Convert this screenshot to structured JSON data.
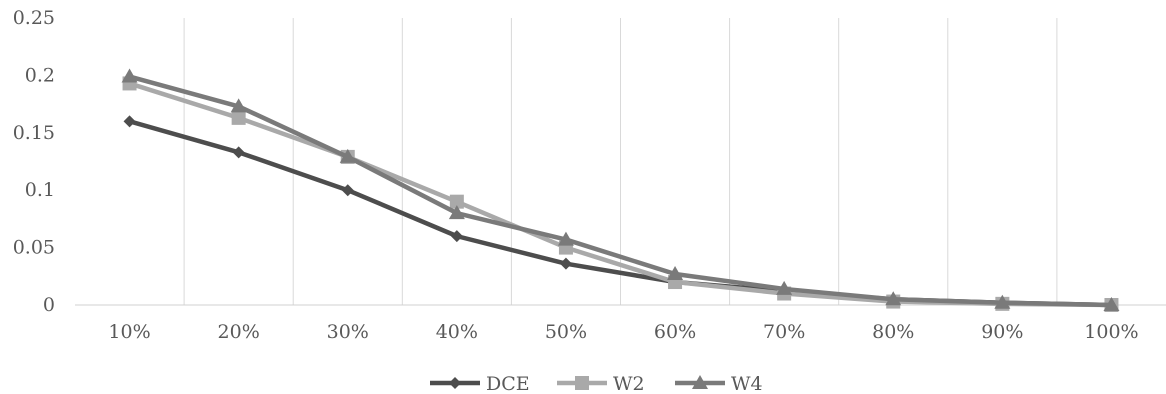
{
  "chart_data": {
    "type": "line",
    "title": "",
    "xlabel": "",
    "ylabel": "",
    "categories": [
      "10%",
      "20%",
      "30%",
      "40%",
      "50%",
      "60%",
      "70%",
      "80%",
      "90%",
      "100%"
    ],
    "ylim": [
      0,
      0.25
    ],
    "yticks": [
      "0",
      "0.05",
      "0.1",
      "0.15",
      "0.2",
      "0.25"
    ],
    "grid": "vertical",
    "legend_position": "bottom",
    "series": [
      {
        "name": "DCE",
        "marker": "diamond",
        "color": "#4d4d4d",
        "values": [
          0.16,
          0.133,
          0.1,
          0.06,
          0.036,
          0.02,
          0.012,
          0.005,
          0.002,
          0.0
        ]
      },
      {
        "name": "W2",
        "marker": "square",
        "color": "#a9a9a9",
        "values": [
          0.193,
          0.163,
          0.129,
          0.09,
          0.05,
          0.02,
          0.01,
          0.003,
          0.001,
          0.0
        ]
      },
      {
        "name": "W4",
        "marker": "triangle",
        "color": "#7a7a7a",
        "values": [
          0.199,
          0.173,
          0.129,
          0.08,
          0.057,
          0.027,
          0.014,
          0.005,
          0.002,
          0.0
        ]
      }
    ]
  }
}
